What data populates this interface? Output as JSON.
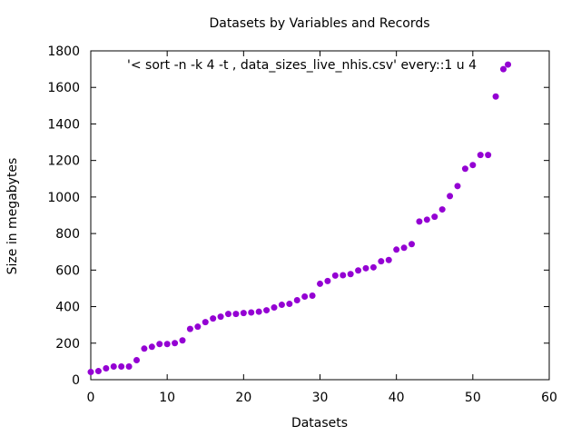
{
  "chart_data": {
    "type": "scatter",
    "title": "Datasets by Variables and Records",
    "xlabel": "Datasets",
    "ylabel": "Size in megabytes",
    "xlim": [
      0,
      60
    ],
    "ylim": [
      0,
      1800
    ],
    "xticks": [
      0,
      10,
      20,
      30,
      40,
      50,
      60
    ],
    "yticks": [
      0,
      200,
      400,
      600,
      800,
      1000,
      1200,
      1400,
      1600,
      1800
    ],
    "grid": false,
    "legend_position": "top-right",
    "series": [
      {
        "name": "'< sort -n -k 4 -t , data_sizes_live_nhis.csv' every::1 u 4",
        "color": "#9400d3",
        "marker": "filled-circle",
        "x": [
          0,
          1,
          2,
          3,
          4,
          5,
          6,
          7,
          8,
          9,
          10,
          11,
          12,
          13,
          14,
          15,
          16,
          17,
          18,
          19,
          20,
          21,
          22,
          23,
          24,
          25,
          26,
          27,
          28,
          29,
          30,
          31,
          32,
          33,
          34,
          35,
          36,
          37,
          38,
          39,
          40,
          41,
          42,
          43,
          44,
          45,
          46,
          47,
          48,
          49,
          50,
          51,
          52,
          53,
          54,
          54.6
        ],
        "y": [
          42,
          47,
          62,
          72,
          72,
          72,
          107,
          170,
          180,
          195,
          195,
          200,
          215,
          278,
          290,
          315,
          335,
          345,
          360,
          360,
          365,
          368,
          372,
          380,
          395,
          410,
          415,
          435,
          455,
          460,
          525,
          540,
          570,
          572,
          578,
          598,
          610,
          615,
          648,
          655,
          712,
          722,
          742,
          866,
          876,
          892,
          932,
          1005,
          1060,
          1155,
          1175,
          1230,
          1230,
          1550,
          1700,
          1725
        ]
      }
    ]
  }
}
